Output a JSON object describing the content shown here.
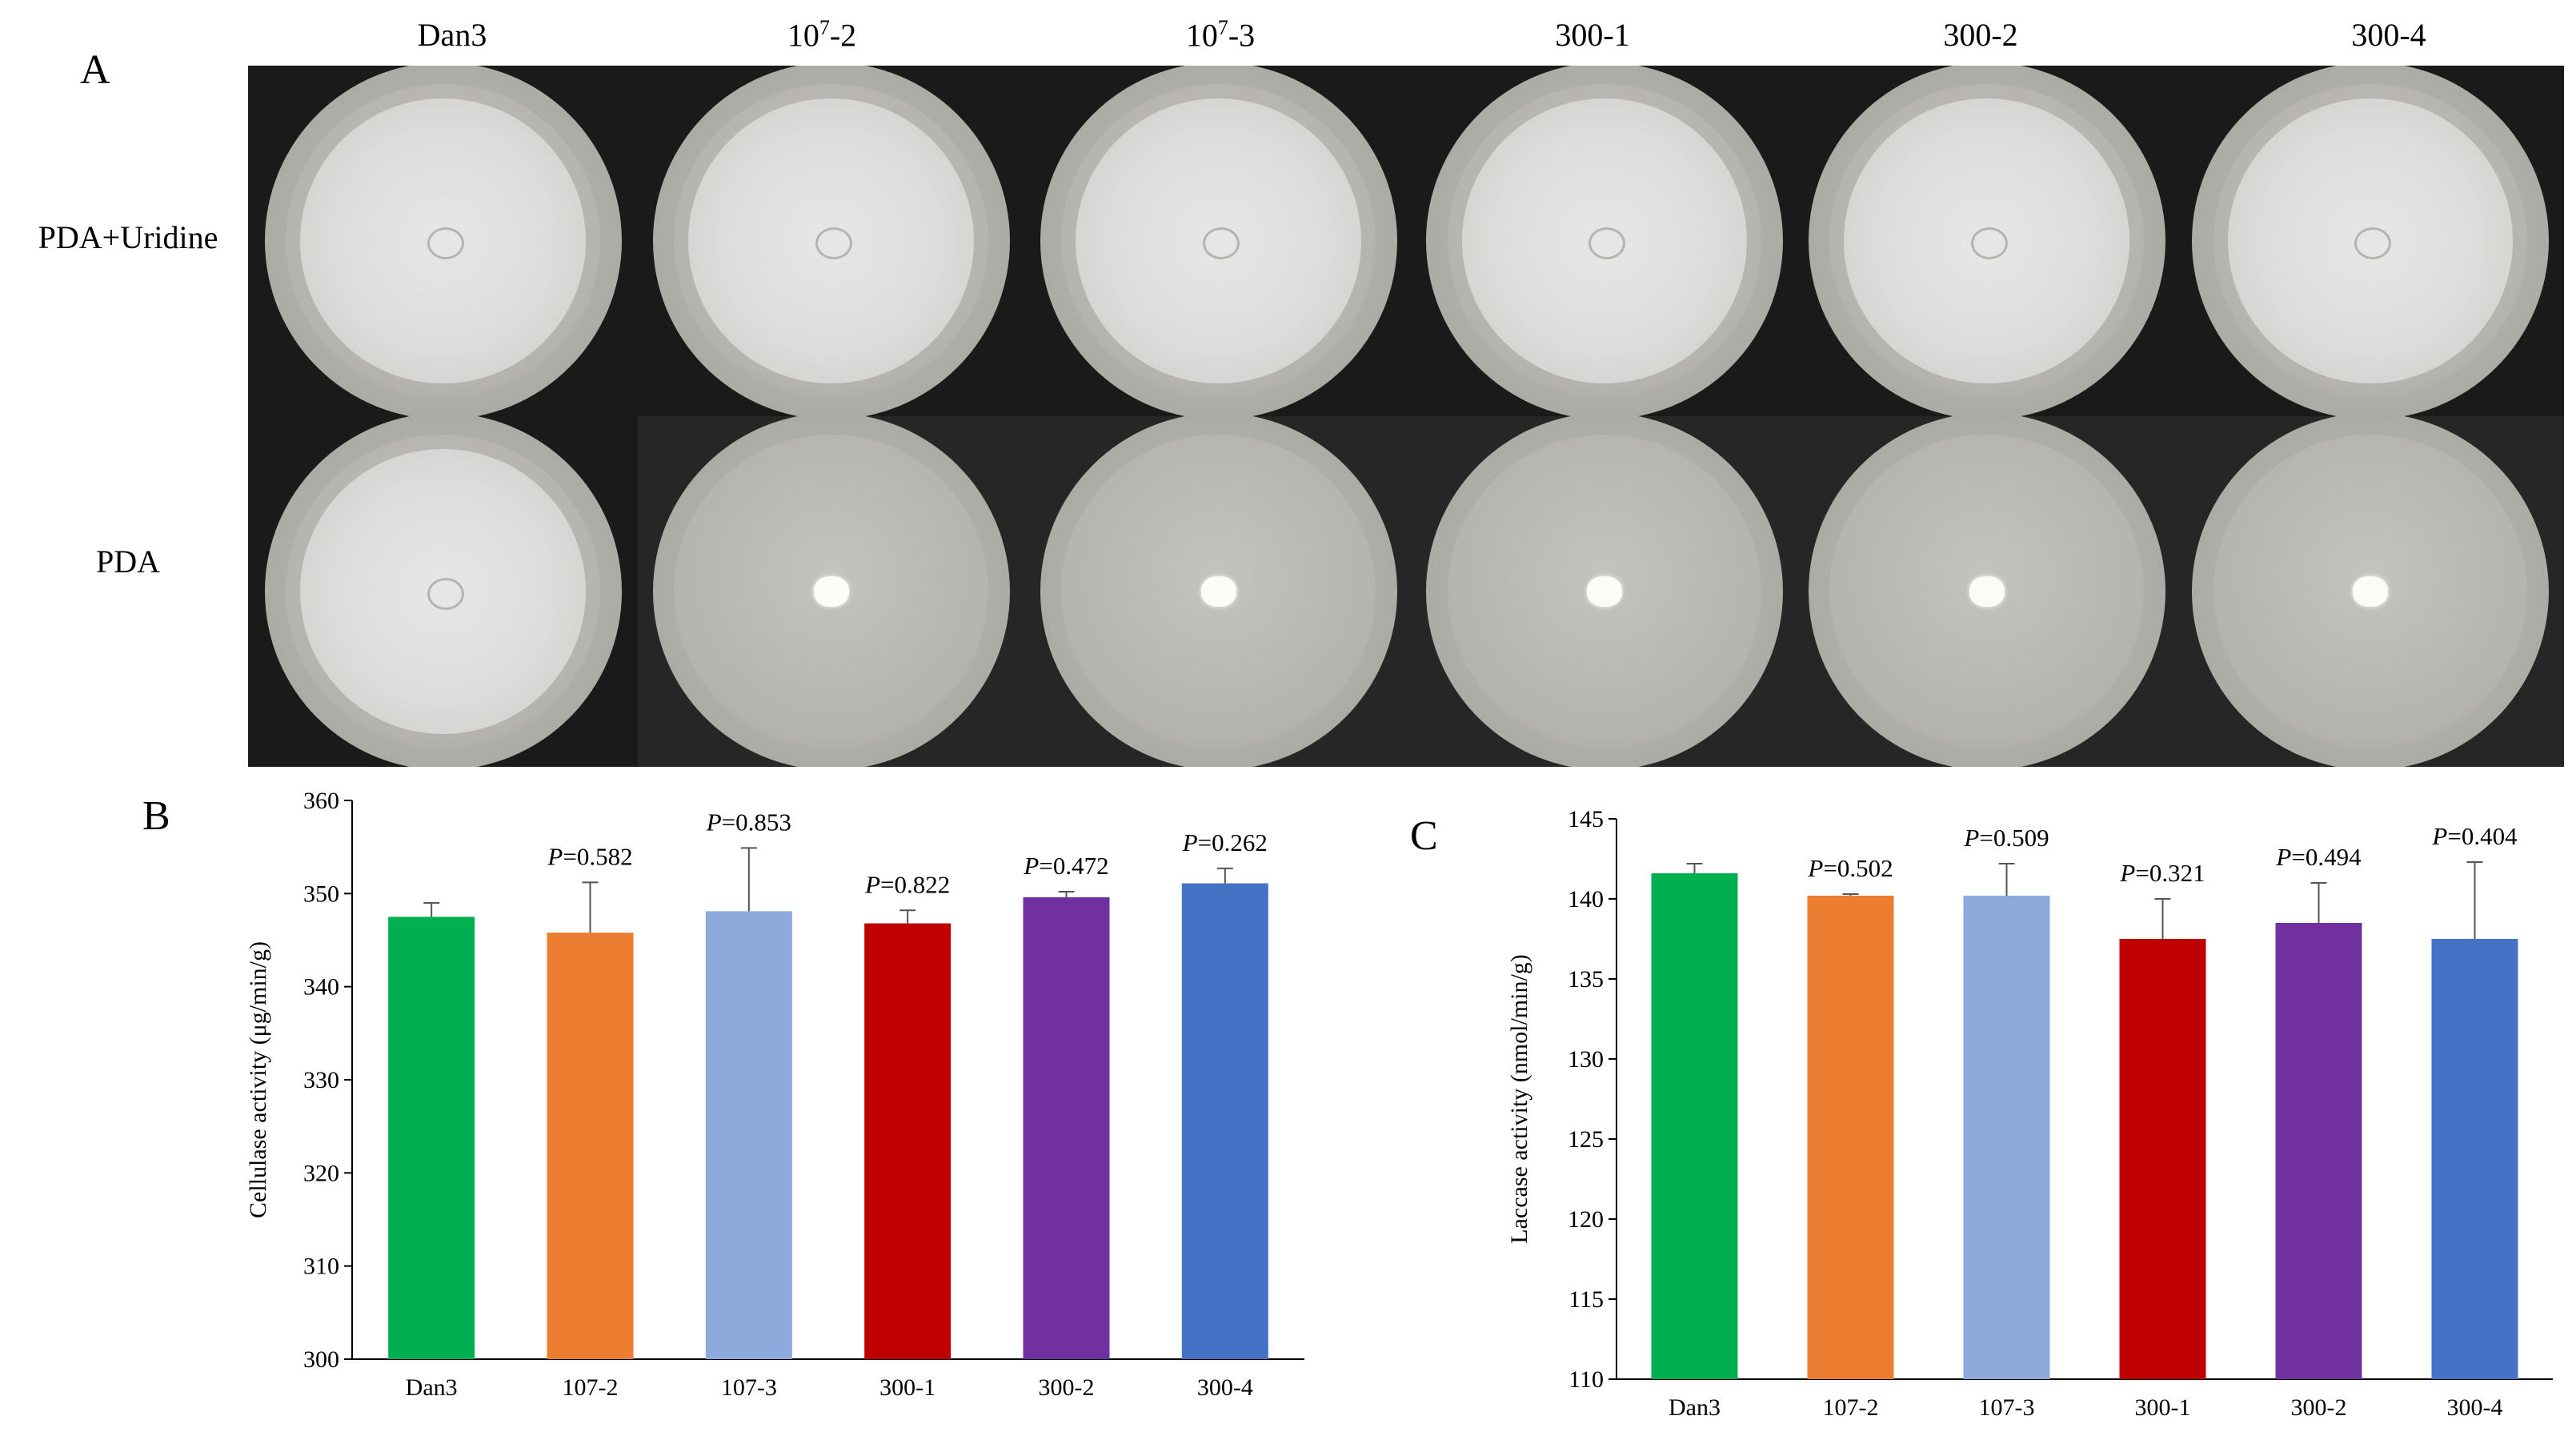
{
  "figure": {
    "panel_a_label": "A",
    "panel_b_label": "B",
    "panel_c_label": "C",
    "strains": [
      {
        "base": "Dan3",
        "sup": ""
      },
      {
        "base": "10",
        "sup": "7",
        "suffix": "-2"
      },
      {
        "base": "10",
        "sup": "7",
        "suffix": "-3"
      },
      {
        "base": "300-1",
        "sup": ""
      },
      {
        "base": "300-2",
        "sup": ""
      },
      {
        "base": "300-4",
        "sup": ""
      }
    ],
    "row_labels": [
      "PDA+Uridine",
      "PDA"
    ],
    "growth": {
      "pda_uridine": [
        "full",
        "full",
        "full",
        "full",
        "full",
        "full"
      ],
      "pda": [
        "full",
        "plug",
        "plug",
        "plug",
        "plug",
        "plug"
      ]
    }
  },
  "chart_data": [
    {
      "type": "bar",
      "panel": "B",
      "categories": [
        "Dan3",
        "107-2",
        "107-3",
        "300-1",
        "300-2",
        "300-4"
      ],
      "values": [
        347.5,
        345.8,
        348.1,
        346.8,
        349.6,
        351.1
      ],
      "errors": [
        1.5,
        5.4,
        6.8,
        1.4,
        0.6,
        1.6
      ],
      "annotations": [
        "",
        "P=0.582",
        "P=0.853",
        "P=0.822",
        "P=0.472",
        "P=0.262"
      ],
      "colors": [
        "#00B050",
        "#ED7D31",
        "#8EA9DB",
        "#C00000",
        "#7030A0",
        "#4472C4"
      ],
      "ylabel": "Cellulase activity (μg/min/g)",
      "xlabel": "",
      "ylim": [
        300,
        360
      ],
      "yticks": [
        "300",
        "310",
        "320",
        "330",
        "340",
        "350",
        "360"
      ]
    },
    {
      "type": "bar",
      "panel": "C",
      "categories": [
        "Dan3",
        "107-2",
        "107-3",
        "300-1",
        "300-2",
        "300-4"
      ],
      "values": [
        141.6,
        140.2,
        140.2,
        137.5,
        138.5,
        137.5
      ],
      "errors": [
        0.6,
        0.1,
        2.0,
        2.5,
        2.5,
        4.8
      ],
      "annotations": [
        "",
        "P=0.502",
        "P=0.509",
        "P=0.321",
        "P=0.494",
        "P=0.404"
      ],
      "colors": [
        "#00B050",
        "#ED7D31",
        "#8EA9DB",
        "#C00000",
        "#7030A0",
        "#4472C4"
      ],
      "ylabel": "Laccase activity (nmol/min/g)",
      "xlabel": "",
      "ylim": [
        110,
        145
      ],
      "yticks": [
        "110",
        "115",
        "120",
        "125",
        "130",
        "135",
        "140",
        "145"
      ]
    }
  ]
}
